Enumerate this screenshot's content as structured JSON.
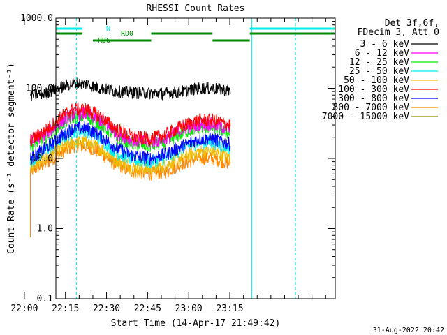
{
  "chart_data": {
    "type": "line",
    "title": "RHESSI Count Rates",
    "xlabel": "Start Time (14-Apr-17 21:49:42)",
    "ylabel": "Count Rate (s⁻¹ detector segment⁻¹)",
    "yscale": "log",
    "ylim": [
      0.1,
      1000
    ],
    "xlim_minutes": [
      21.8,
      123.8
    ],
    "x_ticks": [
      "22:00",
      "22:15",
      "22:30",
      "22:45",
      "23:00",
      "23:15"
    ],
    "x_tick_minutes": [
      10.3,
      25.3,
      40.3,
      55.3,
      70.3,
      85.3
    ],
    "y_ticks": [
      "1000.0",
      "100.0",
      "10.0",
      "1.0",
      "0.1"
    ],
    "y_tick_values": [
      1000,
      100,
      10,
      1,
      0.1
    ],
    "legend_position": "top-right",
    "legend_header": [
      "Det 3f,6f,",
      "FDecim 3, Att 0"
    ],
    "series": [
      {
        "name": "3 - 6 keV",
        "color": "#000000",
        "noise": 0.09,
        "x": [
          12.5,
          18,
          24,
          28,
          33,
          38,
          44,
          50,
          56,
          62,
          68,
          74,
          79,
          85.5
        ],
        "values": [
          80,
          85,
          105,
          118,
          115,
          100,
          90,
          87,
          85,
          85,
          90,
          100,
          100,
          92
        ]
      },
      {
        "name": "6 - 12 keV",
        "color": "#ff00ff",
        "noise": 0.1,
        "x": [
          12.5,
          18,
          24,
          28,
          33,
          38,
          44,
          50,
          56,
          62,
          68,
          74,
          79,
          85.5
        ],
        "values": [
          17,
          22,
          34,
          43,
          44,
          35,
          23,
          18,
          17,
          19,
          26,
          31,
          31,
          26
        ]
      },
      {
        "name": "12 - 25 keV",
        "color": "#00ee00",
        "noise": 0.1,
        "x": [
          12.5,
          18,
          24,
          28,
          33,
          38,
          44,
          50,
          56,
          62,
          68,
          74,
          79,
          85.5
        ],
        "values": [
          15,
          20,
          31,
          39,
          40,
          31,
          20,
          16,
          15,
          17,
          23,
          28,
          28,
          23
        ]
      },
      {
        "name": "25 - 50 keV",
        "color": "#00eeee",
        "noise": 0.1,
        "x": [
          12.5,
          18,
          24,
          28,
          33,
          38,
          44,
          50,
          56,
          62,
          68,
          74,
          79,
          85.5
        ],
        "values": [
          9,
          13,
          19,
          24,
          25,
          19,
          12,
          9.5,
          9,
          10,
          14,
          17,
          17,
          14
        ]
      },
      {
        "name": "50 - 100 keV",
        "color": "#eebb00",
        "noise": 0.1,
        "x": [
          12.5,
          18,
          24,
          28,
          33,
          38,
          44,
          50,
          56,
          62,
          68,
          74,
          79,
          85.5
        ],
        "values": [
          7.5,
          10,
          14,
          17,
          17,
          14,
          9.5,
          7.5,
          7,
          8,
          10.5,
          12.5,
          12.5,
          10.5
        ]
      },
      {
        "name": "100 - 300 keV",
        "color": "#ff0000",
        "noise": 0.1,
        "x": [
          12.5,
          18,
          24,
          28,
          33,
          38,
          44,
          50,
          56,
          62,
          68,
          74,
          79,
          85.5
        ],
        "values": [
          18,
          25,
          40,
          50,
          50,
          40,
          26,
          20,
          19,
          22,
          29,
          35,
          35,
          30
        ]
      },
      {
        "name": "300 - 800 keV",
        "color": "#0000ff",
        "noise": 0.1,
        "x": [
          12.5,
          18,
          24,
          28,
          33,
          38,
          44,
          50,
          56,
          62,
          68,
          74,
          79,
          85.5
        ],
        "values": [
          10,
          14,
          21,
          27,
          27,
          21,
          14,
          11,
          10,
          11.5,
          15,
          19,
          19,
          16
        ]
      },
      {
        "name": "800 - 7000 keV",
        "color": "#ff8800",
        "noise": 0.1,
        "x": [
          12.5,
          18,
          24,
          28,
          33,
          38,
          44,
          50,
          56,
          62,
          68,
          74,
          79,
          85.5
        ],
        "values": [
          6.5,
          8.5,
          12,
          15,
          15,
          12,
          8,
          6.5,
          6,
          6.5,
          8.5,
          10,
          10,
          8.5
        ]
      },
      {
        "name": "7000 - 15000 keV",
        "color": "#888800",
        "noise": 0,
        "x": [],
        "values": []
      }
    ],
    "spike": {
      "series": "800 - 7000 keV",
      "x": 12.5,
      "values": [
        0.75,
        6.5
      ]
    },
    "annotations": [
      {
        "label": "N",
        "type": "night",
        "color": "#00eeee"
      },
      {
        "label": "RD0",
        "type": "flag",
        "color": "#008800"
      },
      {
        "label": "RD6",
        "type": "flag",
        "color": "#008800"
      }
    ],
    "bars": {
      "night": {
        "color": "#00eeee",
        "segments": [
          [
            21.8,
            31.5
          ],
          [
            92.6,
            123.8
          ]
        ]
      },
      "rd0": {
        "color": "#008800",
        "segments": [
          [
            21.8,
            31.5
          ],
          [
            56.6,
            79
          ],
          [
            92.6,
            123.8
          ]
        ]
      },
      "rd6": {
        "color": "#008800",
        "segments": [
          [
            35.3,
            56.6
          ],
          [
            79,
            92.6
          ]
        ]
      }
    },
    "vlines": [
      {
        "x": 21.8,
        "style": "solid",
        "color": "#00eeee"
      },
      {
        "x": 29.3,
        "style": "dashed",
        "color": "#00eeee"
      },
      {
        "x": 93.3,
        "style": "solid",
        "color": "#00eeee"
      },
      {
        "x": 109.3,
        "style": "dashed",
        "color": "#00eeee"
      }
    ]
  },
  "footer": {
    "timestamp": "31-Aug-2022 20:42"
  }
}
